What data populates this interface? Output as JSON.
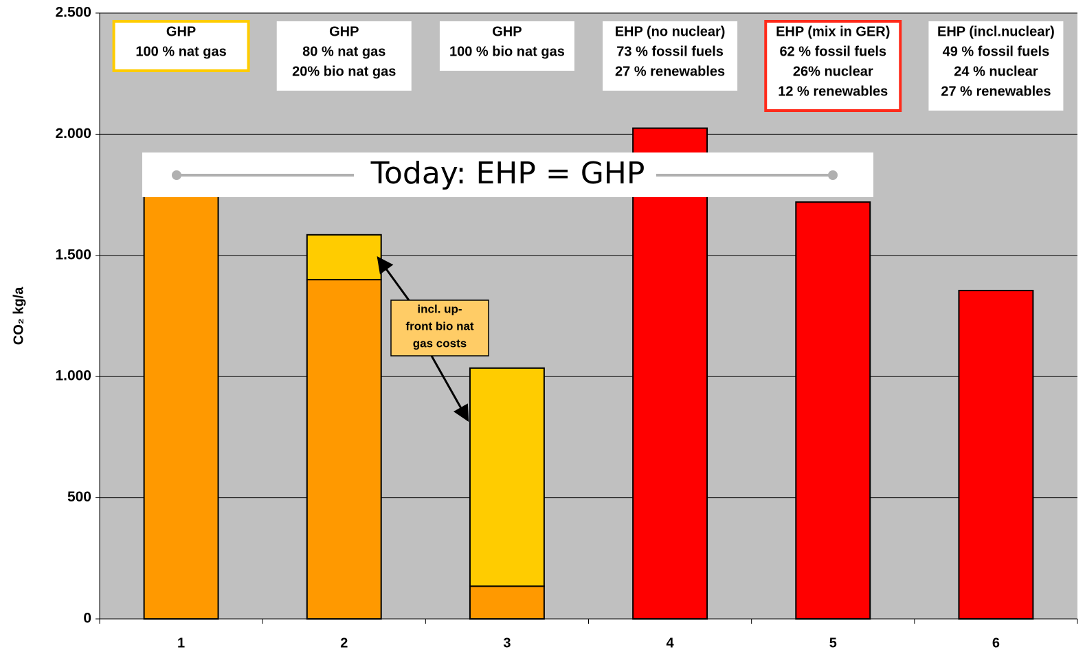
{
  "chart_data": {
    "type": "bar",
    "stacked": true,
    "categories": [
      "1",
      "2",
      "3",
      "4",
      "5",
      "6"
    ],
    "series": [
      {
        "colors": [
          "#ff9900",
          "#ff9900",
          "#ff9900",
          "#ff0000",
          "#ff0000",
          "#ff0000"
        ],
        "values": [
          1750,
          1400,
          135,
          2025,
          1720,
          1355
        ]
      },
      {
        "color": "#ffcc00",
        "values": [
          null,
          185,
          900,
          null,
          null,
          null
        ]
      }
    ],
    "ylabel": "CO₂ kg/a",
    "ylim": [
      0,
      2500
    ],
    "yticks": [
      0,
      500,
      {
        "value": 1000,
        "label": "1.000"
      },
      {
        "value": 1500,
        "label": "1.500"
      },
      {
        "value": 2000,
        "label": "2.000"
      },
      {
        "value": 2500,
        "label": "2.500"
      }
    ],
    "grid": true,
    "plot_background": "#c0c0c0",
    "bar_labels": [
      {
        "lines": [
          "GHP",
          "100 % nat gas"
        ],
        "border": "#ffcc00"
      },
      {
        "lines": [
          "GHP",
          "80 % nat gas",
          "20% bio nat gas"
        ],
        "border": null
      },
      {
        "lines": [
          "GHP",
          "100 % bio nat gas"
        ],
        "border": null
      },
      {
        "lines": [
          "EHP (no nuclear)",
          "73 % fossil fuels",
          "27 % renewables"
        ],
        "border": null
      },
      {
        "lines": [
          "EHP (mix in GER)",
          "62 % fossil fuels",
          "26% nuclear",
          "12 % renewables"
        ],
        "border": "#ff2a1a"
      },
      {
        "lines": [
          "EHP (incl.nuclear)",
          "49 % fossil fuels",
          "24 % nuclear",
          "27 % renewables"
        ],
        "border": null
      }
    ],
    "banner": "Today: EHP = GHP",
    "callout": [
      "incl. up-",
      "front bio nat",
      "gas costs"
    ]
  }
}
